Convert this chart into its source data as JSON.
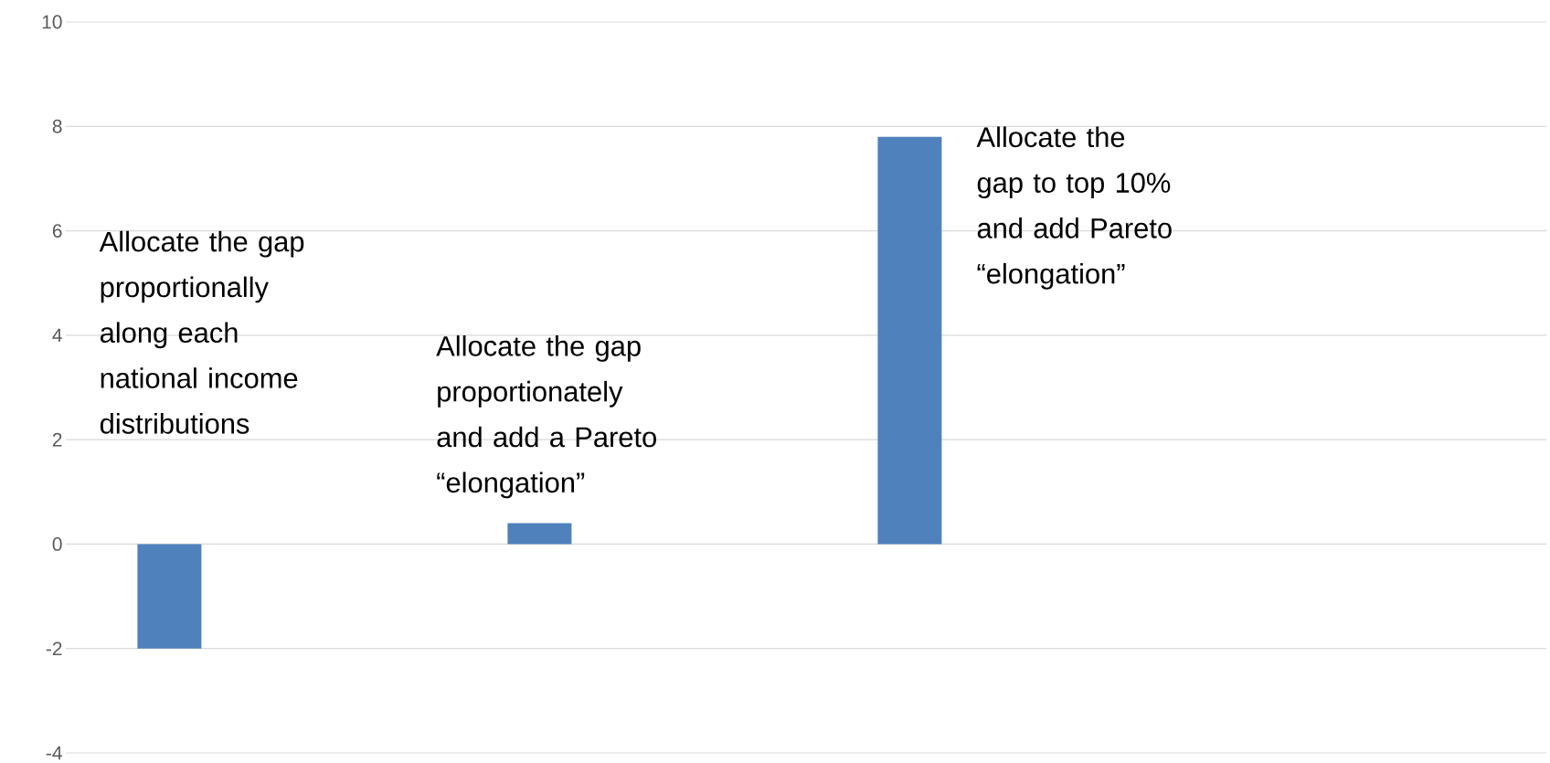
{
  "chart_data": {
    "type": "bar",
    "categories": [
      null,
      null,
      null,
      null
    ],
    "values": [
      -2,
      0.4,
      7.8,
      null
    ],
    "color": "#4f81bd",
    "ylim": [
      -4,
      10
    ],
    "yticks": [
      -4,
      -2,
      0,
      2,
      4,
      6,
      8,
      10
    ],
    "grid": "y",
    "annotations": [
      "Allocate the gap proportionally along each national income distributions",
      "Allocate the gap proportionately and add a Pareto “elongation”",
      "Allocate the gap to top 10% and add Pareto “elongation”"
    ]
  }
}
